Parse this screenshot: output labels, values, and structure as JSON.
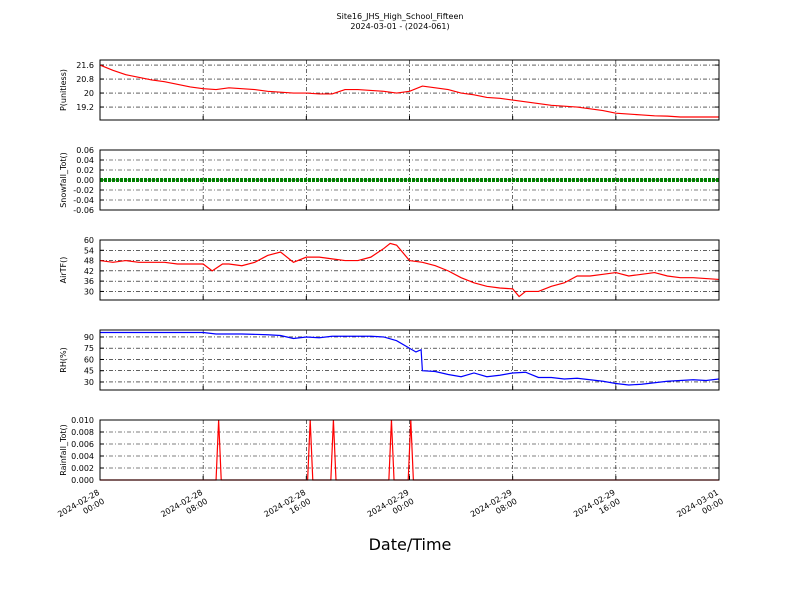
{
  "chart_data": [
    {
      "type": "line",
      "title": "Site16_JHS_High_School_Fifteen",
      "subtitle": "2024-03-01 - (2024-061)",
      "ylabel": "P(unitless)",
      "color": "#ff0000",
      "grid": true,
      "xlim": [
        0,
        48
      ],
      "ylim": [
        18.46,
        21.89
      ],
      "yticks": [
        19.2,
        20.0,
        20.8,
        21.6
      ],
      "x": [
        0,
        1,
        2,
        3,
        4,
        5,
        6,
        7,
        8,
        9,
        10,
        11,
        12,
        13,
        14,
        15,
        16,
        17,
        18,
        19,
        20,
        21,
        22,
        23,
        24,
        25,
        26,
        27,
        28,
        29,
        30,
        31,
        32,
        33,
        34,
        35,
        36,
        37,
        38,
        39,
        40,
        41,
        42,
        43,
        44,
        45,
        46,
        47,
        48
      ],
      "values": [
        21.6,
        21.3,
        21.05,
        20.9,
        20.75,
        20.65,
        20.5,
        20.35,
        20.25,
        20.2,
        20.3,
        20.25,
        20.2,
        20.1,
        20.05,
        20.0,
        20.0,
        19.95,
        19.95,
        20.2,
        20.2,
        20.15,
        20.1,
        20.0,
        20.1,
        20.4,
        20.3,
        20.2,
        20.0,
        19.9,
        19.75,
        19.7,
        19.6,
        19.5,
        19.4,
        19.3,
        19.25,
        19.2,
        19.1,
        19.0,
        18.85,
        18.8,
        18.75,
        18.7,
        18.68,
        18.63,
        18.63,
        18.63,
        18.63
      ]
    },
    {
      "type": "line",
      "ylabel": "Snowfall_Tot()",
      "color": "#008000",
      "grid": true,
      "xlim": [
        0,
        48
      ],
      "ylim": [
        -0.06,
        0.06
      ],
      "yticks": [
        -0.06,
        -0.04,
        -0.02,
        {
          "value": 0,
          "label": "0.00"
        },
        0.02,
        0.04,
        0.06
      ],
      "x": [
        0,
        2,
        4,
        6,
        8,
        10,
        12,
        14,
        16,
        18,
        20,
        22,
        24,
        26,
        28,
        30,
        32,
        34,
        36,
        38,
        40,
        42,
        44,
        46,
        48
      ],
      "values": [
        0,
        0,
        0,
        0,
        0,
        0,
        0,
        0,
        0,
        0,
        0,
        0,
        0,
        0,
        0,
        0,
        0,
        0,
        0,
        0,
        0,
        0,
        0,
        0,
        0
      ]
    },
    {
      "type": "line",
      "ylabel": "AirTF()",
      "color": "#ff0000",
      "grid": true,
      "xlim": [
        0,
        48
      ],
      "ylim": [
        25,
        60
      ],
      "yticks": [
        30,
        36,
        42,
        48,
        54,
        60
      ],
      "x": [
        0,
        1,
        2,
        3,
        4,
        5,
        6,
        7,
        8,
        8.7,
        9.5,
        10,
        11,
        12,
        13,
        14,
        15,
        16,
        17,
        18,
        19,
        20,
        21,
        22,
        22.5,
        23,
        24,
        25,
        26,
        27,
        28,
        29,
        30,
        31,
        32,
        32.5,
        33,
        34,
        35,
        36,
        37,
        38,
        39,
        40,
        41,
        42,
        43,
        44,
        45,
        46,
        47,
        48
      ],
      "values": [
        48,
        47,
        48,
        47,
        47,
        47,
        46,
        46,
        46,
        42,
        46,
        46,
        45,
        47,
        51,
        53,
        47,
        50,
        50,
        49,
        48,
        48,
        50,
        55,
        58,
        57,
        48,
        47,
        45,
        42,
        38,
        35,
        33,
        32,
        31.5,
        27,
        30,
        30,
        33,
        35,
        39,
        39,
        40,
        41,
        39,
        40,
        41,
        39,
        38,
        38,
        37.5,
        37
      ]
    },
    {
      "type": "line",
      "ylabel": "RH(%)",
      "color": "#0000ff",
      "grid": true,
      "xlim": [
        0,
        48
      ],
      "ylim": [
        19.3,
        99.3
      ],
      "yticks": [
        30,
        45,
        60,
        75,
        90
      ],
      "x": [
        0,
        2,
        4,
        6,
        8,
        9,
        11,
        13,
        14,
        15,
        16,
        17,
        18,
        20,
        21,
        22,
        23,
        24.5,
        24.9,
        25,
        26,
        27,
        28,
        29,
        30,
        31,
        32,
        33,
        34,
        35,
        36,
        37,
        38,
        39,
        40,
        41,
        42,
        43,
        44,
        45,
        46,
        47,
        48
      ],
      "values": [
        96,
        96,
        96,
        96,
        96,
        94,
        94,
        93,
        92,
        88,
        90,
        89,
        91,
        91,
        91,
        90,
        85,
        70,
        73,
        45,
        44,
        40,
        37,
        42,
        37,
        39,
        42,
        43,
        36,
        36,
        34,
        35,
        33,
        31,
        28,
        26,
        27,
        29,
        31,
        32,
        33,
        32,
        34
      ]
    },
    {
      "type": "line",
      "ylabel": "Rainfall_Tot()",
      "xlabel": "Date/Time",
      "color": "#ff0000",
      "grid": true,
      "xlim": [
        0,
        48
      ],
      "ylim": [
        0,
        0.01
      ],
      "xticks": [
        {
          "value": 0,
          "label": "2024-02-28\n00:00"
        },
        {
          "value": 8,
          "label": "2024-02-28\n08:00"
        },
        {
          "value": 16,
          "label": "2024-02-28\n16:00"
        },
        {
          "value": 24,
          "label": "2024-02-29\n00:00"
        },
        {
          "value": 32,
          "label": "2024-02-29\n08:00"
        },
        {
          "value": 40,
          "label": "2024-02-29\n16:00"
        },
        {
          "value": 48,
          "label": "2024-03-01\n00:00"
        }
      ],
      "yticks": [
        {
          "value": 0,
          "label": "0.000"
        },
        {
          "value": 0.002,
          "label": "0.002"
        },
        {
          "value": 0.004,
          "label": "0.004"
        },
        {
          "value": 0.006,
          "label": "0.006"
        },
        {
          "value": 0.008,
          "label": "0.008"
        },
        {
          "value": 0.01,
          "label": "0.010"
        }
      ],
      "x": [
        0,
        9.0,
        9.2,
        9.4,
        16.1,
        16.3,
        16.5,
        17.9,
        18.1,
        18.3,
        22.4,
        22.6,
        22.8,
        23.9,
        24.1,
        24.3,
        48
      ],
      "values": [
        0,
        0,
        0.01,
        0,
        0,
        0.01,
        0,
        0,
        0.01,
        0,
        0,
        0.01,
        0,
        0,
        0.01,
        0,
        0
      ]
    }
  ]
}
